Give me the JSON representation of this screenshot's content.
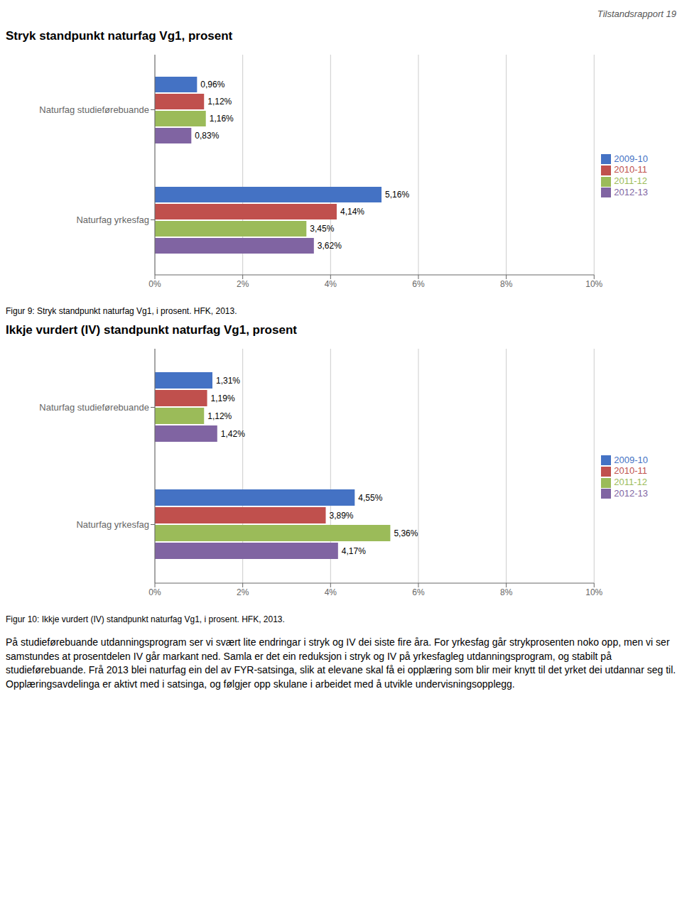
{
  "header": "Tilstandsrapport 19",
  "text": "På studieførebuande utdanningsprogram ser vi svært lite endringar i stryk og IV dei siste fire åra. For yrkesfag går strykprosenten noko opp, men vi ser samstundes at prosentdelen IV går markant ned. Samla er det ein reduksjon i stryk og IV på yrkesfagleg utdanningsprogram, og stabilt på studieførebuande. Frå 2013 blei naturfag ein del av FYR-satsinga, slik at elevane skal få ei opplæring som blir meir knytt til det yrket dei utdannar seg til. Opplæringsavdelinga er aktivt med i satsinga, og følgjer opp skulane i arbeidet med å utvikle undervisningsopplegg.",
  "chart_data": [
    {
      "type": "bar",
      "orientation": "horizontal",
      "title": "Stryk standpunkt naturfag Vg1, prosent",
      "annotations": [
        "Figur 9: Stryk standpunkt naturfag Vg1, i prosent. HFK, 2013."
      ],
      "categories": [
        "Naturfag studieførebuande",
        "Naturfag yrkesfag"
      ],
      "series": [
        {
          "name": "2009-10",
          "color": "#4472C4",
          "values": [
            0.96,
            5.16
          ],
          "value_labels": [
            "0,96%",
            "5,16%"
          ]
        },
        {
          "name": "2010-11",
          "color": "#C0504D",
          "values": [
            1.12,
            4.14
          ],
          "value_labels": [
            "1,12%",
            "4,14%"
          ]
        },
        {
          "name": "2011-12",
          "color": "#9BBB59",
          "values": [
            1.16,
            3.45
          ],
          "value_labels": [
            "1,16%",
            "3,45%"
          ]
        },
        {
          "name": "2012-13",
          "color": "#8064A2",
          "values": [
            0.83,
            3.62
          ],
          "value_labels": [
            "0,83%",
            "3,62%"
          ]
        }
      ],
      "xlim": [
        0,
        10
      ],
      "xticks": [
        {
          "value": 0,
          "label": "0%"
        },
        {
          "value": 2,
          "label": "2%"
        },
        {
          "value": 4,
          "label": "4%"
        },
        {
          "value": 6,
          "label": "6%"
        },
        {
          "value": 8,
          "label": "8%"
        },
        {
          "value": 10,
          "label": "10%"
        }
      ],
      "grid": true,
      "legend": "right",
      "data_labels": true
    },
    {
      "type": "bar",
      "orientation": "horizontal",
      "title": "Ikkje vurdert (IV) standpunkt naturfag Vg1, prosent",
      "annotations": [
        "Figur 10: Ikkje vurdert (IV) standpunkt naturfag Vg1, i prosent. HFK, 2013."
      ],
      "categories": [
        "Naturfag studieførebuande",
        "Naturfag yrkesfag"
      ],
      "series": [
        {
          "name": "2009-10",
          "color": "#4472C4",
          "values": [
            1.31,
            4.55
          ],
          "value_labels": [
            "1,31%",
            "4,55%"
          ]
        },
        {
          "name": "2010-11",
          "color": "#C0504D",
          "values": [
            1.19,
            3.89
          ],
          "value_labels": [
            "1,19%",
            "3,89%"
          ]
        },
        {
          "name": "2011-12",
          "color": "#9BBB59",
          "values": [
            1.12,
            5.36
          ],
          "value_labels": [
            "1,12%",
            "5,36%"
          ]
        },
        {
          "name": "2012-13",
          "color": "#8064A2",
          "values": [
            1.42,
            4.17
          ],
          "value_labels": [
            "1,42%",
            "4,17%"
          ]
        }
      ],
      "xlim": [
        0,
        10
      ],
      "xticks": [
        {
          "value": 0,
          "label": "0%"
        },
        {
          "value": 2,
          "label": "2%"
        },
        {
          "value": 4,
          "label": "4%"
        },
        {
          "value": 6,
          "label": "6%"
        },
        {
          "value": 8,
          "label": "8%"
        },
        {
          "value": 10,
          "label": "10%"
        }
      ],
      "grid": true,
      "legend": "right",
      "data_labels": true
    }
  ]
}
